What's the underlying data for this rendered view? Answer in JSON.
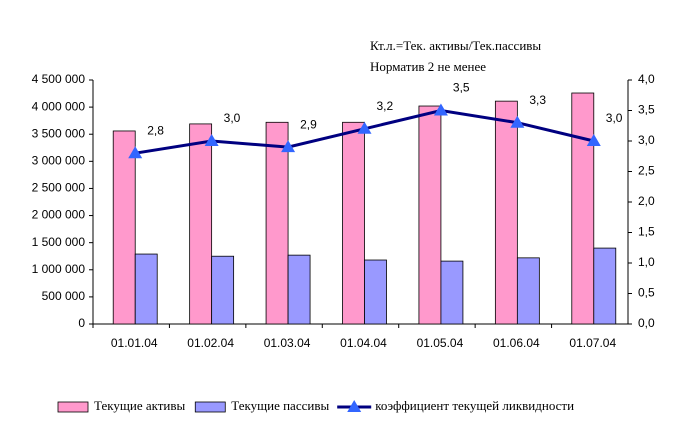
{
  "chart_data": {
    "type": "bar",
    "annotations": [
      "Кт.л.=Тек. активы/Тек.пассивы",
      "Норматив 2 не менее"
    ],
    "categories": [
      "01.01.04",
      "01.02.04",
      "01.03.04",
      "01.04.04",
      "01.05.04",
      "01.06.04",
      "01.07.04"
    ],
    "series": [
      {
        "name": "Текущие активы",
        "color": "#ff99cc",
        "values": [
          3560000,
          3690000,
          3720000,
          3720000,
          4020000,
          4110000,
          4260000
        ]
      },
      {
        "name": "Текущие пассивы",
        "color": "#9999ff",
        "values": [
          1290000,
          1250000,
          1270000,
          1180000,
          1160000,
          1220000,
          1400000
        ]
      },
      {
        "name": "коэффициент текущей ликвидности",
        "type": "line",
        "axis": "y2",
        "color": "#000080",
        "marker_color": "#3366ff",
        "values": [
          2.8,
          3.0,
          2.9,
          3.2,
          3.5,
          3.3,
          3.0
        ],
        "value_labels": [
          "2,8",
          "3,0",
          "2,9",
          "3,2",
          "3,5",
          "3,3",
          "3,0"
        ]
      }
    ],
    "ylim": [
      0,
      4500000
    ],
    "yticks": [
      0,
      {
        "value": 500000,
        "label": "500 000"
      },
      {
        "value": 1000000,
        "label": "1 000 000"
      },
      {
        "value": 1500000,
        "label": "1 500 000"
      },
      {
        "value": 2000000,
        "label": "2 000 000"
      },
      {
        "value": 2500000,
        "label": "2 500 000"
      },
      {
        "value": 3000000,
        "label": "3 000 000"
      },
      {
        "value": 3500000,
        "label": "3 500 000"
      },
      {
        "value": 4000000,
        "label": "4 000 000"
      },
      {
        "value": 4500000,
        "label": "4 500 000"
      }
    ],
    "y2lim": [
      0,
      4
    ],
    "y2ticks": [
      {
        "value": 0,
        "label": "0,0"
      },
      {
        "value": 0.5,
        "label": "0,5"
      },
      {
        "value": 1,
        "label": "1,0"
      },
      {
        "value": 1.5,
        "label": "1,5"
      },
      {
        "value": 2,
        "label": "2,0"
      },
      {
        "value": 2.5,
        "label": "2,5"
      },
      {
        "value": 3,
        "label": "3,0"
      },
      {
        "value": 3.5,
        "label": "3,5"
      },
      {
        "value": 4,
        "label": "4,0"
      }
    ],
    "legend": "bottom"
  }
}
